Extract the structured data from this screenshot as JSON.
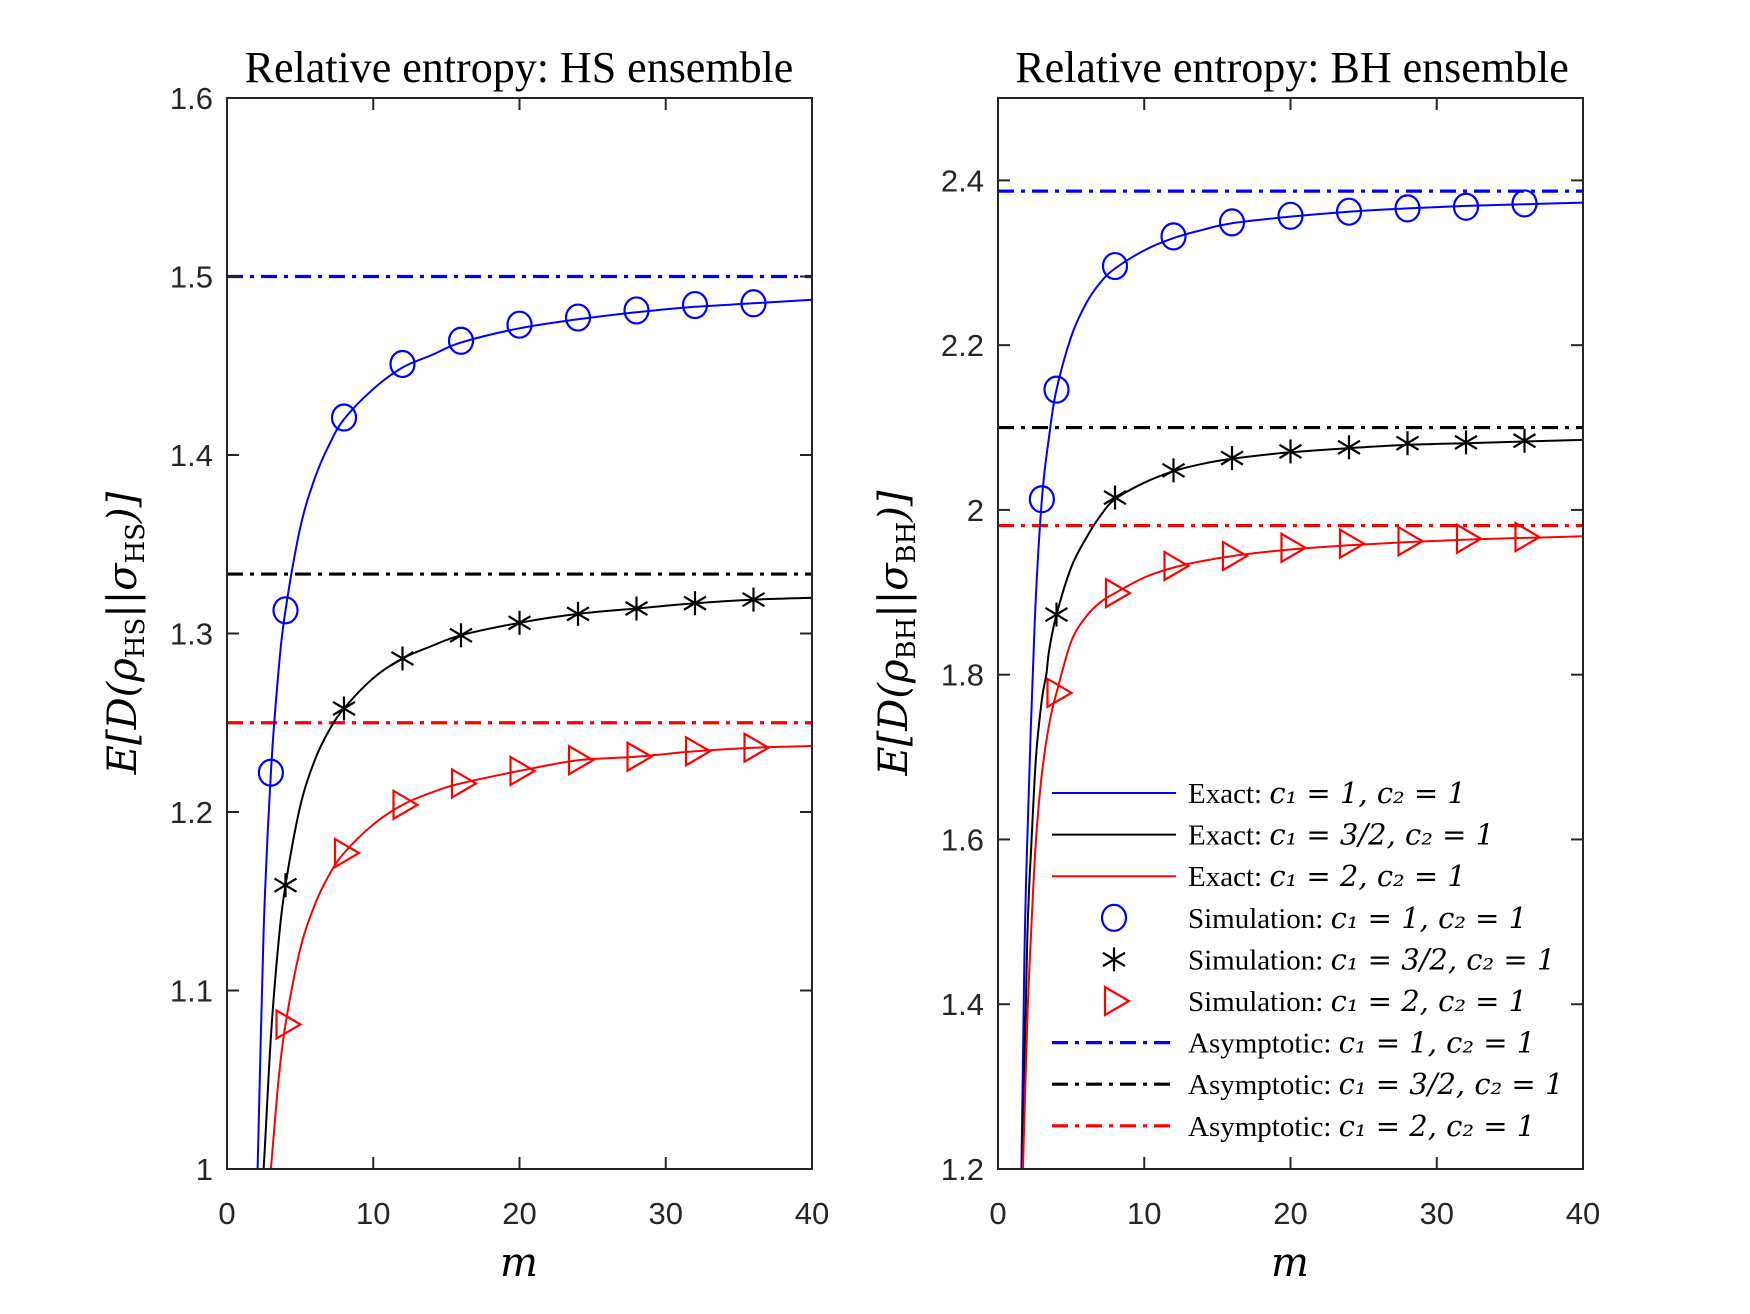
{
  "figure": {
    "background": "#ffffff"
  },
  "colors": {
    "blue": "#0000ff",
    "black": "#000000",
    "red": "#ff0000",
    "axis": "#262626"
  },
  "legend": {
    "placement": "bottom-right of right panel",
    "entries": [
      {
        "label_prefix": "Exact:",
        "math": "c₁ = 1, c₂ = 1",
        "style": "solid",
        "marker": "none",
        "color": "blue"
      },
      {
        "label_prefix": "Exact:",
        "math": "c₁ = 3/2, c₂ = 1",
        "style": "solid",
        "marker": "none",
        "color": "black"
      },
      {
        "label_prefix": "Exact:",
        "math": "c₁ = 2, c₂ = 1",
        "style": "solid",
        "marker": "none",
        "color": "red"
      },
      {
        "label_prefix": "Simulation:",
        "math": "c₁ = 1, c₂ = 1",
        "style": "none",
        "marker": "circle",
        "color": "blue"
      },
      {
        "label_prefix": "Simulation:",
        "math": "c₁ = 3/2, c₂ = 1",
        "style": "none",
        "marker": "asterisk",
        "color": "black"
      },
      {
        "label_prefix": "Simulation:",
        "math": "c₁ = 2, c₂ = 1",
        "style": "none",
        "marker": "triangle-right",
        "color": "red"
      },
      {
        "label_prefix": "Asymptotic:",
        "math": "c₁ = 1, c₂ = 1",
        "style": "dashdot",
        "marker": "none",
        "color": "blue"
      },
      {
        "label_prefix": "Asymptotic:",
        "math": "c₁ = 3/2, c₂ = 1",
        "style": "dashdot",
        "marker": "none",
        "color": "black"
      },
      {
        "label_prefix": "Asymptotic:",
        "math": "c₁ = 2, c₂ = 1",
        "style": "dashdot",
        "marker": "none",
        "color": "red"
      }
    ]
  },
  "chart_data": [
    {
      "type": "line",
      "title": "Relative entropy: HS ensemble",
      "xlabel": "m",
      "ylabel": "E[D(ρHS||σHS)]",
      "ylabel_parts": {
        "pre": "E[D(ρ",
        "sub1": "HS",
        "mid": "||σ",
        "sub2": "HS",
        "post": ")]"
      },
      "xlim": [
        0,
        40
      ],
      "ylim": [
        1.0,
        1.6
      ],
      "xticks": [
        0,
        10,
        20,
        30,
        40
      ],
      "yticks": [
        1,
        1.1,
        1.2,
        1.3,
        1.4,
        1.5,
        1.6
      ],
      "xtick_labels": [
        "0",
        "10",
        "20",
        "30",
        "40"
      ],
      "ytick_labels": [
        "1",
        "1.1",
        "1.2",
        "1.3",
        "1.4",
        "1.5",
        "1.6"
      ],
      "grid": false,
      "series": [
        {
          "name": "Exact: c1=1, c2=1",
          "kind": "exact",
          "color": "blue",
          "x": [
            2.09,
            2.5,
            3,
            3.5,
            4,
            5,
            6,
            7,
            8,
            10,
            12,
            14,
            16,
            20,
            24,
            28,
            32,
            36,
            40
          ],
          "y": [
            1.0,
            1.133,
            1.222,
            1.277,
            1.313,
            1.359,
            1.387,
            1.406,
            1.42,
            1.437,
            1.449,
            1.456,
            1.463,
            1.471,
            1.476,
            1.48,
            1.483,
            1.485,
            1.487
          ]
        },
        {
          "name": "Exact: c1=3/2, c2=1",
          "kind": "exact",
          "color": "black",
          "x": [
            2.5,
            3,
            3.5,
            4,
            5,
            6,
            7,
            8,
            10,
            12,
            14,
            16,
            20,
            24,
            28,
            32,
            36,
            40
          ],
          "y": [
            1.0,
            1.074,
            1.125,
            1.159,
            1.203,
            1.229,
            1.246,
            1.258,
            1.275,
            1.286,
            1.293,
            1.299,
            1.306,
            1.311,
            1.314,
            1.317,
            1.319,
            1.32
          ]
        },
        {
          "name": "Exact: c1=2, c2=1",
          "kind": "exact",
          "color": "red",
          "x": [
            3.0,
            3.5,
            4,
            5,
            6,
            7,
            8,
            10,
            12,
            14,
            16,
            20,
            24,
            28,
            32,
            36,
            40
          ],
          "y": [
            1.0,
            1.048,
            1.081,
            1.123,
            1.148,
            1.165,
            1.177,
            1.193,
            1.204,
            1.211,
            1.216,
            1.223,
            1.229,
            1.231,
            1.234,
            1.236,
            1.237
          ]
        },
        {
          "name": "Simulation: c1=1, c2=1",
          "kind": "simulation",
          "marker": "circle",
          "color": "blue",
          "x": [
            3,
            4,
            8,
            12,
            16,
            20,
            24,
            28,
            32,
            36
          ],
          "y": [
            1.222,
            1.313,
            1.421,
            1.451,
            1.464,
            1.473,
            1.477,
            1.481,
            1.484,
            1.485
          ]
        },
        {
          "name": "Simulation: c1=3/2, c2=1",
          "kind": "simulation",
          "marker": "asterisk",
          "color": "black",
          "x": [
            4,
            8,
            12,
            16,
            20,
            24,
            28,
            32,
            36
          ],
          "y": [
            1.159,
            1.258,
            1.286,
            1.299,
            1.306,
            1.311,
            1.314,
            1.317,
            1.319
          ]
        },
        {
          "name": "Simulation: c1=2, c2=1",
          "kind": "simulation",
          "marker": "triangle-right",
          "color": "red",
          "x": [
            4,
            8,
            12,
            16,
            20,
            24,
            28,
            32,
            36
          ],
          "y": [
            1.081,
            1.177,
            1.204,
            1.216,
            1.223,
            1.229,
            1.231,
            1.234,
            1.236
          ]
        },
        {
          "name": "Asymptotic: c1=1, c2=1",
          "kind": "asymptotic",
          "color": "blue",
          "value": 1.5
        },
        {
          "name": "Asymptotic: c1=3/2, c2=1",
          "kind": "asymptotic",
          "color": "black",
          "value": 1.3333
        },
        {
          "name": "Asymptotic: c1=2, c2=1",
          "kind": "asymptotic",
          "color": "red",
          "value": 1.25
        }
      ]
    },
    {
      "type": "line",
      "title": "Relative entropy: BH ensemble",
      "xlabel": "m",
      "ylabel": "E[D(ρBH||σBH)]",
      "ylabel_parts": {
        "pre": "E[D(ρ",
        "sub1": "BH",
        "mid": "||σ",
        "sub2": "BH",
        "post": ")]"
      },
      "xlim": [
        0,
        40
      ],
      "ylim": [
        1.2,
        2.5
      ],
      "xticks": [
        0,
        10,
        20,
        30,
        40
      ],
      "yticks": [
        1.2,
        1.4,
        1.6,
        1.8,
        2.0,
        2.2,
        2.4
      ],
      "xtick_labels": [
        "0",
        "10",
        "20",
        "30",
        "40"
      ],
      "ytick_labels": [
        "1.2",
        "1.4",
        "1.6",
        "1.8",
        "2",
        "2.2",
        "2.4"
      ],
      "grid": false,
      "legend": true,
      "series": [
        {
          "name": "Exact: c1=1, c2=1",
          "kind": "exact",
          "color": "blue",
          "x": [
            1.6,
            1.8,
            2.0,
            2.5,
            3,
            3.5,
            4,
            5,
            6,
            7,
            8,
            10,
            12,
            14,
            16,
            20,
            24,
            28,
            32,
            36,
            40
          ],
          "y": [
            1.2,
            1.45,
            1.6,
            1.86,
            2.013,
            2.09,
            2.146,
            2.21,
            2.25,
            2.276,
            2.293,
            2.315,
            2.33,
            2.34,
            2.348,
            2.356,
            2.362,
            2.366,
            2.369,
            2.371,
            2.373
          ]
        },
        {
          "name": "Exact: c1=3/2, c2=1",
          "kind": "exact",
          "color": "black",
          "x": [
            1.65,
            2.0,
            2.3,
            2.6,
            3,
            3.3,
            3.5,
            4,
            5,
            6,
            7,
            8,
            10,
            12,
            14,
            16,
            20,
            24,
            28,
            32,
            36,
            40
          ],
          "y": [
            1.2,
            1.48,
            1.6,
            1.7,
            1.77,
            1.8,
            1.83,
            1.873,
            1.93,
            1.965,
            1.993,
            2.013,
            2.033,
            2.047,
            2.056,
            2.062,
            2.07,
            2.075,
            2.079,
            2.081,
            2.083,
            2.085
          ]
        },
        {
          "name": "Exact: c1=2, c2=1",
          "kind": "exact",
          "color": "red",
          "x": [
            1.7,
            2.0,
            2.3,
            2.6,
            3,
            3.5,
            4,
            5,
            6,
            7,
            8,
            10,
            12,
            14,
            16,
            20,
            24,
            28,
            32,
            36,
            40
          ],
          "y": [
            1.2,
            1.38,
            1.5,
            1.6,
            1.68,
            1.74,
            1.778,
            1.84,
            1.87,
            1.888,
            1.899,
            1.918,
            1.93,
            1.938,
            1.944,
            1.952,
            1.957,
            1.961,
            1.964,
            1.966,
            1.968
          ]
        },
        {
          "name": "Simulation: c1=1, c2=1",
          "kind": "simulation",
          "marker": "circle",
          "color": "blue",
          "x": [
            3,
            4,
            8,
            12,
            16,
            20,
            24,
            28,
            32,
            36
          ],
          "y": [
            2.013,
            2.146,
            2.296,
            2.332,
            2.349,
            2.357,
            2.362,
            2.366,
            2.368,
            2.372
          ]
        },
        {
          "name": "Simulation: c1=3/2, c2=1",
          "kind": "simulation",
          "marker": "asterisk",
          "color": "black",
          "x": [
            4,
            8,
            12,
            16,
            20,
            24,
            28,
            32,
            36
          ],
          "y": [
            1.873,
            2.015,
            2.048,
            2.063,
            2.071,
            2.076,
            2.081,
            2.082,
            2.084
          ]
        },
        {
          "name": "Simulation: c1=2, c2=1",
          "kind": "simulation",
          "marker": "triangle-right",
          "color": "red",
          "x": [
            4,
            8,
            12,
            16,
            20,
            24,
            28,
            32,
            36
          ],
          "y": [
            1.778,
            1.899,
            1.932,
            1.944,
            1.954,
            1.959,
            1.962,
            1.965,
            1.967
          ]
        },
        {
          "name": "Asymptotic: c1=1, c2=1",
          "kind": "asymptotic",
          "color": "blue",
          "value": 2.387
        },
        {
          "name": "Asymptotic: c1=3/2, c2=1",
          "kind": "asymptotic",
          "color": "black",
          "value": 2.1
        },
        {
          "name": "Asymptotic: c1=2, c2=1",
          "kind": "asymptotic",
          "color": "red",
          "value": 1.981
        }
      ]
    }
  ]
}
